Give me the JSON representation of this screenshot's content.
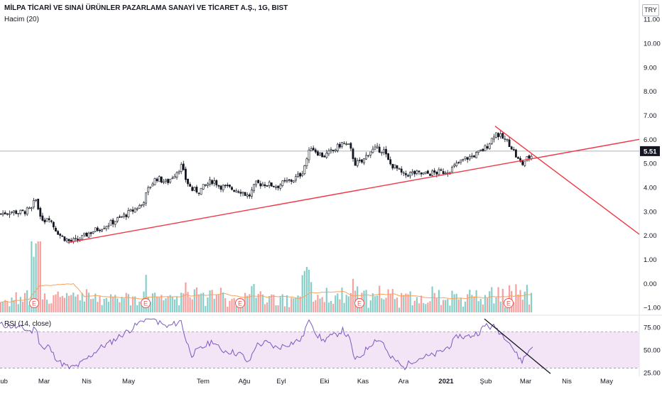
{
  "header": {
    "title": "MİLPA TİCARİ VE SINAİ ÜRÜNLER PAZARLAMA SANAYİ VE TİCARET A.Ş., 1G, BIST",
    "volume_label": "Hacim (20)",
    "currency": "TRY"
  },
  "rsi": {
    "label": "RSI (14, close)",
    "ticks": [
      "75.00",
      "50.00",
      "25.00"
    ]
  },
  "colors": {
    "up": "#26a69a",
    "down": "#ef5350",
    "trendline": "#f23645",
    "rsi_line": "#7e57c2",
    "rsi_band": "#f3e5f5",
    "vol_ma": "#f7a35c"
  },
  "chart_data": {
    "type": "candlestick",
    "price_ticks": [
      "11.00",
      "10.00",
      "9.00",
      "8.00",
      "7.00",
      "6.00",
      "5.00",
      "4.00",
      "3.00",
      "2.00",
      "1.00",
      "0.00",
      "−1.00"
    ],
    "price_range": [
      -1.2,
      11.8
    ],
    "last_price": "5.51",
    "x_ticks": [
      "Şub",
      "Mar",
      "Nis",
      "May",
      "Tem",
      "Ağu",
      "Eyl",
      "Eki",
      "Kas",
      "Ara",
      "2021",
      "Şub",
      "Mar",
      "Nis",
      "May"
    ],
    "x_tick_values": [
      2.5,
      62,
      122,
      181,
      286,
      344,
      396,
      457,
      511,
      568,
      628,
      684,
      740,
      798,
      854
    ],
    "earnings_markers": [
      "E",
      "E",
      "E",
      "E",
      "E"
    ],
    "earnings_x": [
      48,
      205,
      338,
      506,
      716
    ],
    "close_path": [
      [
        0,
        2.9
      ],
      [
        15,
        3.0
      ],
      [
        30,
        2.95
      ],
      [
        45,
        3.1
      ],
      [
        50,
        3.6
      ],
      [
        55,
        3.0
      ],
      [
        62,
        2.6
      ],
      [
        68,
        2.85
      ],
      [
        75,
        2.4
      ],
      [
        85,
        2.0
      ],
      [
        98,
        1.75
      ],
      [
        110,
        1.8
      ],
      [
        125,
        2.1
      ],
      [
        140,
        2.3
      ],
      [
        155,
        2.5
      ],
      [
        170,
        2.75
      ],
      [
        185,
        3.0
      ],
      [
        200,
        3.3
      ],
      [
        210,
        4.0
      ],
      [
        220,
        4.4
      ],
      [
        235,
        4.2
      ],
      [
        250,
        4.7
      ],
      [
        255,
        4.9
      ],
      [
        262,
        4.3
      ],
      [
        270,
        3.9
      ],
      [
        280,
        3.85
      ],
      [
        290,
        4.1
      ],
      [
        300,
        4.3
      ],
      [
        310,
        4.05
      ],
      [
        325,
        3.95
      ],
      [
        340,
        3.85
      ],
      [
        350,
        3.6
      ],
      [
        360,
        4.15
      ],
      [
        375,
        4.15
      ],
      [
        390,
        4.05
      ],
      [
        400,
        4.2
      ],
      [
        412,
        4.3
      ],
      [
        425,
        4.6
      ],
      [
        432,
        5.2
      ],
      [
        438,
        5.7
      ],
      [
        445,
        5.5
      ],
      [
        455,
        5.3
      ],
      [
        462,
        5.4
      ],
      [
        472,
        5.6
      ],
      [
        482,
        5.85
      ],
      [
        492,
        5.7
      ],
      [
        500,
        5.0
      ],
      [
        510,
        5.05
      ],
      [
        520,
        5.5
      ],
      [
        530,
        5.6
      ],
      [
        540,
        5.55
      ],
      [
        548,
        5.0
      ],
      [
        558,
        4.8
      ],
      [
        568,
        4.5
      ],
      [
        580,
        4.6
      ],
      [
        595,
        4.55
      ],
      [
        610,
        4.6
      ],
      [
        625,
        4.65
      ],
      [
        635,
        4.75
      ],
      [
        645,
        5.0
      ],
      [
        655,
        5.2
      ],
      [
        665,
        5.3
      ],
      [
        675,
        5.45
      ],
      [
        685,
        5.7
      ],
      [
        692,
        6.0
      ],
      [
        697,
        6.3
      ],
      [
        705,
        6.1
      ],
      [
        715,
        5.9
      ],
      [
        722,
        5.6
      ],
      [
        728,
        5.2
      ],
      [
        735,
        4.95
      ],
      [
        742,
        5.2
      ],
      [
        750,
        5.35
      ]
    ],
    "rsi_path": [
      [
        0,
        78
      ],
      [
        15,
        76
      ],
      [
        30,
        74
      ],
      [
        45,
        70
      ],
      [
        50,
        76
      ],
      [
        55,
        60
      ],
      [
        62,
        50
      ],
      [
        68,
        55
      ],
      [
        75,
        45
      ],
      [
        85,
        36
      ],
      [
        98,
        30
      ],
      [
        110,
        33
      ],
      [
        125,
        42
      ],
      [
        140,
        52
      ],
      [
        155,
        58
      ],
      [
        170,
        66
      ],
      [
        185,
        73
      ],
      [
        200,
        82
      ],
      [
        210,
        88
      ],
      [
        220,
        82
      ],
      [
        235,
        75
      ],
      [
        250,
        80
      ],
      [
        255,
        82
      ],
      [
        262,
        60
      ],
      [
        270,
        45
      ],
      [
        280,
        50
      ],
      [
        290,
        55
      ],
      [
        300,
        60
      ],
      [
        310,
        50
      ],
      [
        325,
        48
      ],
      [
        340,
        45
      ],
      [
        350,
        35
      ],
      [
        360,
        55
      ],
      [
        375,
        58
      ],
      [
        390,
        52
      ],
      [
        400,
        55
      ],
      [
        412,
        58
      ],
      [
        425,
        62
      ],
      [
        432,
        78
      ],
      [
        438,
        82
      ],
      [
        445,
        68
      ],
      [
        455,
        60
      ],
      [
        462,
        64
      ],
      [
        472,
        66
      ],
      [
        482,
        72
      ],
      [
        492,
        62
      ],
      [
        500,
        38
      ],
      [
        510,
        45
      ],
      [
        520,
        55
      ],
      [
        530,
        62
      ],
      [
        540,
        58
      ],
      [
        548,
        42
      ],
      [
        558,
        38
      ],
      [
        568,
        30
      ],
      [
        580,
        38
      ],
      [
        595,
        42
      ],
      [
        610,
        44
      ],
      [
        625,
        50
      ],
      [
        635,
        56
      ],
      [
        645,
        66
      ],
      [
        655,
        64
      ],
      [
        665,
        66
      ],
      [
        675,
        70
      ],
      [
        685,
        78
      ],
      [
        692,
        74
      ],
      [
        697,
        76
      ],
      [
        705,
        68
      ],
      [
        715,
        62
      ],
      [
        722,
        52
      ],
      [
        728,
        44
      ],
      [
        735,
        38
      ],
      [
        742,
        46
      ],
      [
        750,
        56
      ]
    ],
    "rsi_range": [
      25,
      85
    ],
    "rsi_levels": [
      70,
      30
    ],
    "trendlines": [
      {
        "points": [
          [
            95,
            1.7
          ],
          [
            900,
            6.0
          ]
        ]
      },
      {
        "points": [
          [
            697,
            6.55
          ],
          [
            900,
            2.05
          ]
        ]
      }
    ],
    "rsi_trendline": {
      "points": [
        [
          682,
          84
        ],
        [
          775,
          24
        ]
      ]
    },
    "series": [
      {
        "name": "Hacim (20)",
        "type": "volume"
      }
    ]
  }
}
